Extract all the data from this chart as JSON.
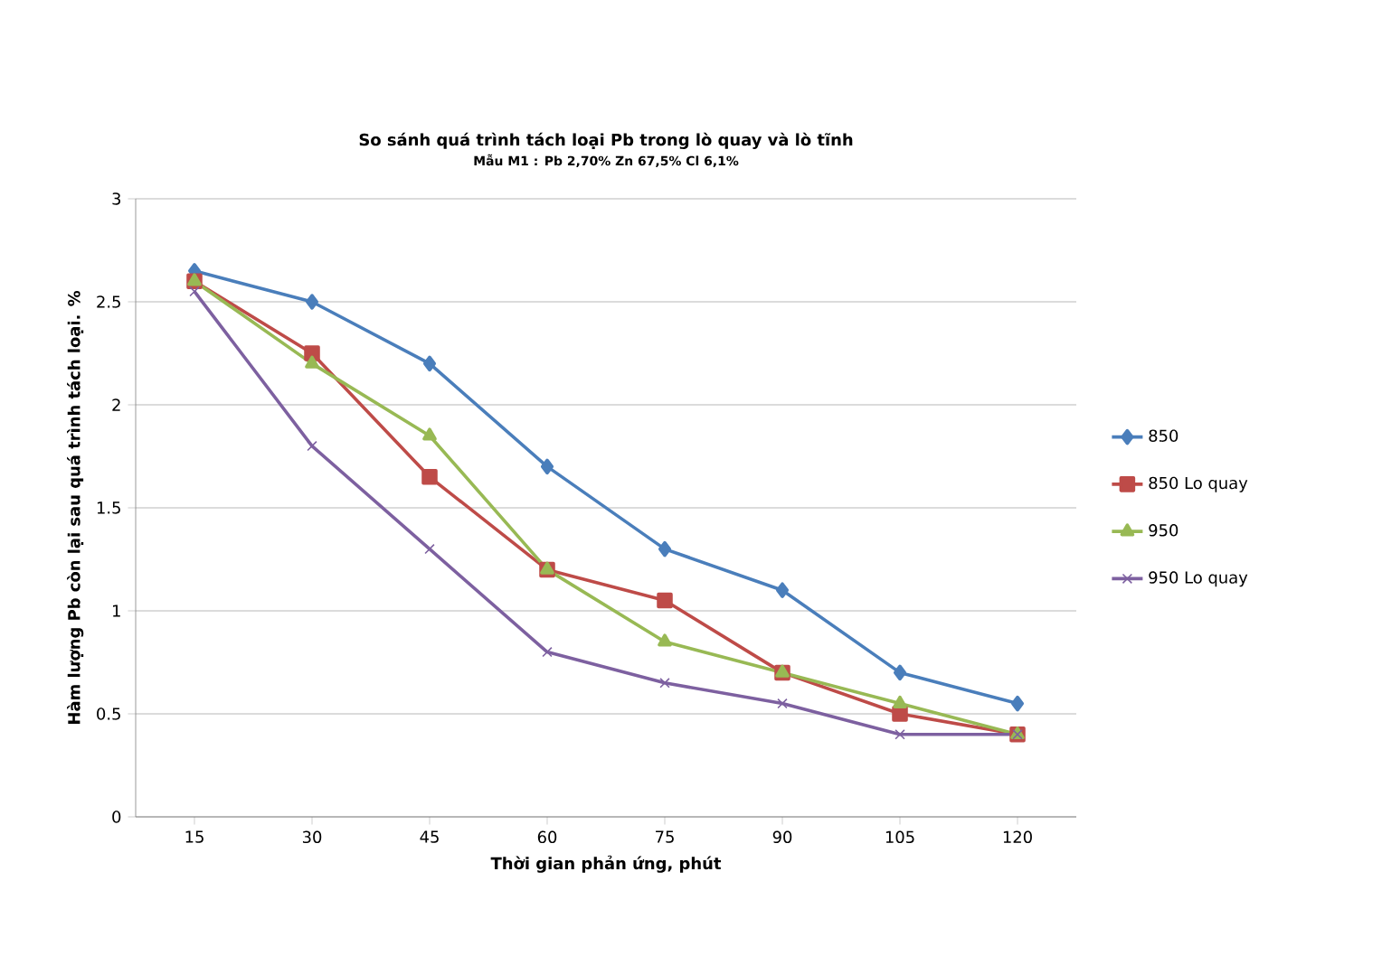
{
  "chart_data": {
    "type": "line",
    "title": "So sánh quá trình tách loại Pb trong lò quay và lò tĩnh",
    "subtitle": "Mẫu M1 : Pb 2,70%  Zn 67,5%  Cl 6,1%",
    "xlabel": "Thời gian phản ứng, phút",
    "ylabel": "Hàm lượng Pb còn lại sau quá trình tách loại. %",
    "categories": [
      "15",
      "30",
      "45",
      "60",
      "75",
      "90",
      "105",
      "120"
    ],
    "series": [
      {
        "name": "850",
        "color": "#4a7ebb",
        "marker": "diamond",
        "values": [
          2.65,
          2.5,
          2.2,
          1.7,
          1.3,
          1.1,
          0.7,
          0.55
        ]
      },
      {
        "name": "850 Lo quay",
        "color": "#be4b48",
        "marker": "square",
        "values": [
          2.6,
          2.25,
          1.65,
          1.2,
          1.05,
          0.7,
          0.5,
          0.4
        ]
      },
      {
        "name": "950",
        "color": "#98b954",
        "marker": "triangle",
        "values": [
          2.6,
          2.2,
          1.85,
          1.2,
          0.85,
          0.7,
          0.55,
          0.4
        ]
      },
      {
        "name": "950 Lo quay",
        "color": "#7d60a0",
        "marker": "cross",
        "values": [
          2.55,
          1.8,
          1.3,
          0.8,
          0.65,
          0.55,
          0.4,
          0.4
        ]
      }
    ],
    "ylim": [
      0,
      3
    ],
    "yticks": [
      0,
      0.5,
      1,
      1.5,
      2,
      2.5,
      3
    ],
    "grid": "y",
    "legend": "right",
    "line_style": "solid"
  }
}
